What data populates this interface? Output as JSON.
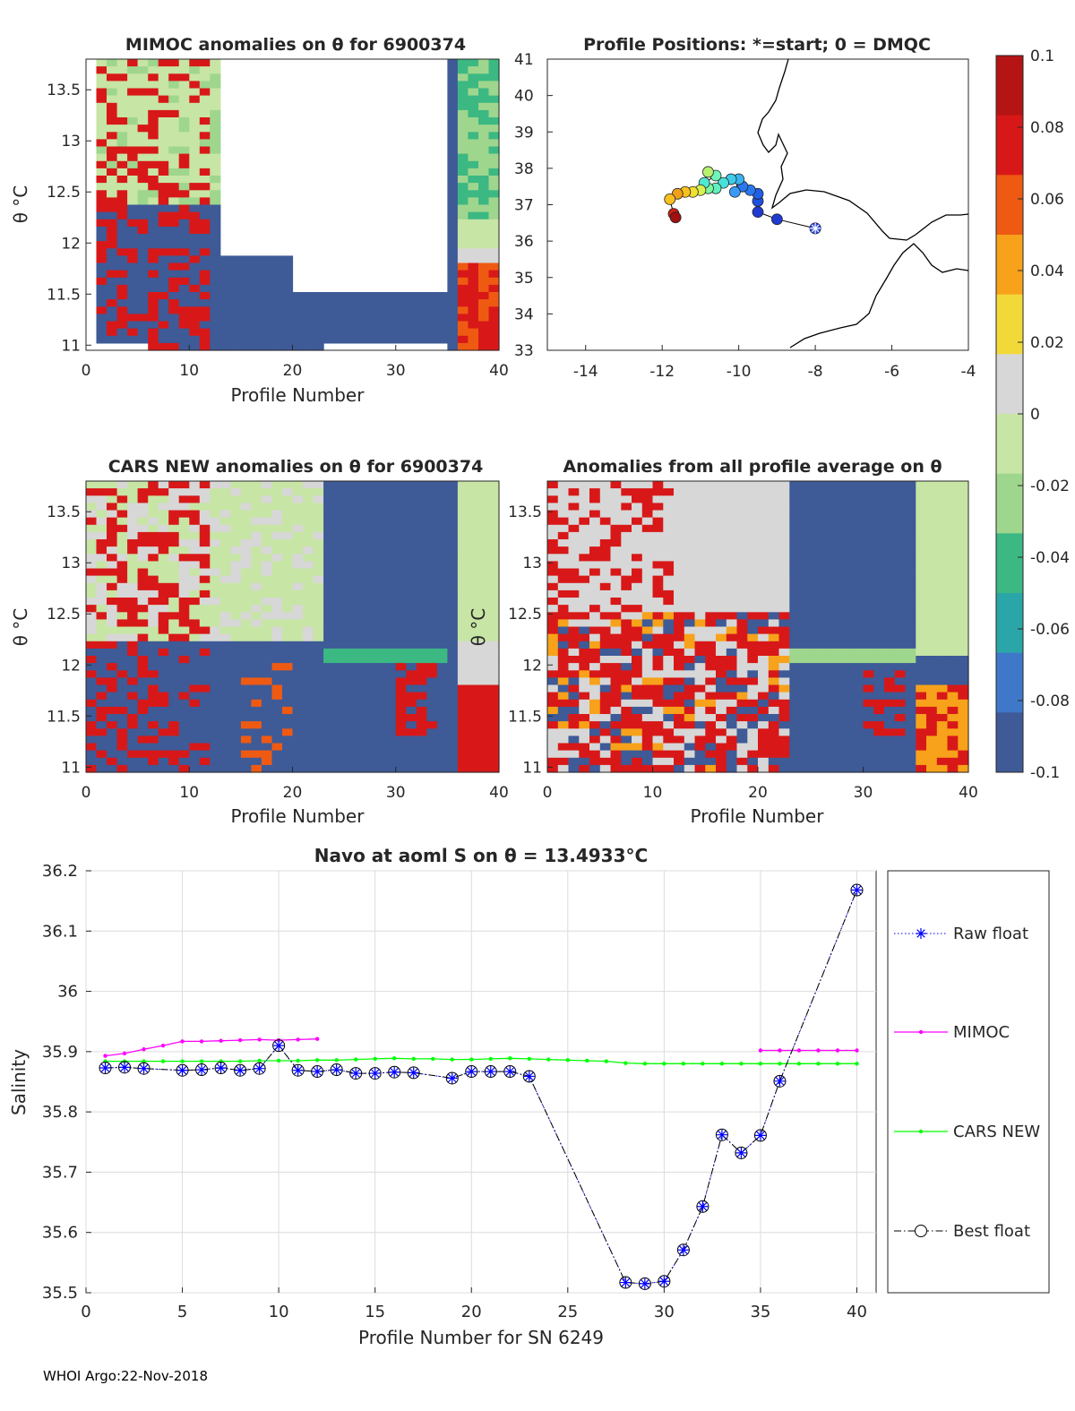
{
  "colors": {
    "cmap": [
      "#3e5a97",
      "#3f78c8",
      "#2ba6a8",
      "#3cb883",
      "#9fd68d",
      "#c7e5a4",
      "#d7d7d7",
      "#f2d93a",
      "#f7a21a",
      "#ef5a13",
      "#d81818",
      "#b51414"
    ],
    "mimoc": "#ff00ff",
    "cars": "#00ff00",
    "raw": "#0000ff",
    "best": "#000000"
  },
  "colorbar": {
    "ticks": [
      "0.1",
      "0.08",
      "0.06",
      "0.04",
      "0.02",
      "0",
      "-0.02",
      "-0.04",
      "-0.06",
      "-0.08",
      "-0.1"
    ]
  },
  "heatmap_titles": {
    "mimoc": "MIMOC anomalies on θ  for 6900374",
    "positions": "Profile Positions: *=start; 0 = DMQC",
    "cars": "CARS NEW anomalies on θ for 6900374",
    "avg": "Anomalies from all profile average on θ"
  },
  "heatmap_axes": {
    "xlabel": "Profile Number",
    "ylabel": "θ °C",
    "yticks": [
      "13.5",
      "13",
      "12.5",
      "12",
      "11.5",
      "11"
    ],
    "xticks": [
      "0",
      "10",
      "20",
      "30",
      "40"
    ]
  },
  "map_axes": {
    "xticks": [
      "-14",
      "-12",
      "-10",
      "-8",
      "-6",
      "-4"
    ],
    "yticks": [
      "41",
      "40",
      "39",
      "38",
      "37",
      "36",
      "35",
      "34",
      "33"
    ]
  },
  "chart_data": [
    {
      "type": "heatmap",
      "title": "MIMOC anomalies on θ  for 6900374",
      "xlabel": "Profile Number",
      "ylabel": "θ °C",
      "xlim": [
        0,
        40
      ],
      "ylim": [
        10.95,
        13.8
      ],
      "clim": [
        -0.1,
        0.1
      ]
    },
    {
      "type": "scatter",
      "title": "Profile Positions: *=start; 0 = DMQC",
      "xlim": [
        -15,
        -4
      ],
      "ylim": [
        33,
        41
      ],
      "points": [
        {
          "lon": -8.0,
          "lat": 36.35,
          "marker": "*"
        },
        {
          "lon": -9.0,
          "lat": 36.6
        },
        {
          "lon": -9.5,
          "lat": 36.8
        },
        {
          "lon": -9.5,
          "lat": 37.1
        },
        {
          "lon": -9.5,
          "lat": 37.3
        },
        {
          "lon": -9.7,
          "lat": 37.4
        },
        {
          "lon": -9.9,
          "lat": 37.5
        },
        {
          "lon": -10.1,
          "lat": 37.35
        },
        {
          "lon": -10.0,
          "lat": 37.7
        },
        {
          "lon": -10.2,
          "lat": 37.7
        },
        {
          "lon": -10.4,
          "lat": 37.6
        },
        {
          "lon": -10.6,
          "lat": 37.45
        },
        {
          "lon": -10.8,
          "lat": 37.45
        },
        {
          "lon": -10.9,
          "lat": 37.6
        },
        {
          "lon": -10.6,
          "lat": 37.8
        },
        {
          "lon": -10.8,
          "lat": 37.9
        },
        {
          "lon": -11.0,
          "lat": 37.4
        },
        {
          "lon": -11.2,
          "lat": 37.35
        },
        {
          "lon": -11.4,
          "lat": 37.35
        },
        {
          "lon": -11.6,
          "lat": 37.3
        },
        {
          "lon": -11.8,
          "lat": 37.15
        },
        {
          "lon": -11.7,
          "lat": 36.75
        },
        {
          "lon": -11.65,
          "lat": 36.65
        }
      ]
    },
    {
      "type": "heatmap",
      "title": "CARS NEW anomalies on θ for 6900374",
      "xlabel": "Profile Number",
      "ylabel": "θ °C",
      "xlim": [
        0,
        40
      ],
      "ylim": [
        10.95,
        13.8
      ],
      "clim": [
        -0.1,
        0.1
      ]
    },
    {
      "type": "heatmap",
      "title": "Anomalies from all profile average on θ",
      "xlabel": "Profile Number",
      "ylabel": "θ °C",
      "xlim": [
        0,
        40
      ],
      "ylim": [
        10.95,
        13.8
      ],
      "clim": [
        -0.1,
        0.1
      ]
    },
    {
      "type": "line",
      "title": "Navo at aoml S on θ = 13.4933°C",
      "xlabel": "Profile Number for SN 6249",
      "ylabel": "Salinity",
      "xlim": [
        0,
        41
      ],
      "ylim": [
        35.5,
        36.2
      ],
      "xticks": [
        "0",
        "5",
        "10",
        "15",
        "20",
        "25",
        "30",
        "35",
        "40"
      ],
      "yticks": [
        "36.2",
        "36.1",
        "36",
        "35.9",
        "35.8",
        "35.7",
        "35.6",
        "35.5"
      ],
      "series": [
        {
          "name": "Raw float",
          "style": "dotted",
          "x": [
            1,
            2,
            3,
            5,
            6,
            7,
            8,
            9,
            10,
            11,
            12,
            13,
            14,
            15,
            16,
            17,
            19,
            20,
            21,
            22,
            23,
            28,
            29,
            30,
            31,
            32,
            33,
            34,
            35,
            36,
            40
          ],
          "y": [
            35.873,
            35.874,
            35.872,
            35.869,
            35.87,
            35.873,
            35.869,
            35.872,
            35.91,
            35.869,
            35.867,
            35.87,
            35.864,
            35.864,
            35.866,
            35.865,
            35.856,
            35.867,
            35.867,
            35.867,
            35.859,
            35.517,
            35.515,
            35.519,
            35.571,
            35.643,
            35.762,
            35.732,
            35.761,
            35.851,
            36.168
          ]
        },
        {
          "name": "MIMOC",
          "style": "solid",
          "x": [
            1,
            2,
            3,
            4,
            5,
            6,
            7,
            8,
            9,
            10,
            11,
            12,
            35,
            36,
            37,
            38,
            39,
            40
          ],
          "y": [
            35.893,
            35.897,
            35.904,
            35.91,
            35.917,
            35.917,
            35.918,
            35.919,
            35.92,
            35.919,
            35.92,
            35.921,
            35.902,
            35.902,
            35.902,
            35.902,
            35.902,
            35.902
          ]
        },
        {
          "name": "CARS NEW",
          "style": "solid",
          "x": [
            1,
            2,
            3,
            4,
            5,
            6,
            7,
            8,
            9,
            10,
            11,
            12,
            13,
            14,
            15,
            16,
            17,
            18,
            19,
            20,
            21,
            22,
            23,
            24,
            25,
            26,
            27,
            28,
            29,
            30,
            31,
            32,
            33,
            34,
            35,
            36,
            37,
            38,
            39,
            40
          ],
          "y": [
            35.884,
            35.884,
            35.884,
            35.884,
            35.884,
            35.884,
            35.884,
            35.884,
            35.885,
            35.885,
            35.885,
            35.886,
            35.886,
            35.887,
            35.888,
            35.889,
            35.888,
            35.888,
            35.887,
            35.887,
            35.888,
            35.889,
            35.888,
            35.887,
            35.886,
            35.885,
            35.884,
            35.881,
            35.88,
            35.88,
            35.88,
            35.88,
            35.88,
            35.88,
            35.88,
            35.88,
            35.88,
            35.88,
            35.88,
            35.88
          ]
        },
        {
          "name": "Best float",
          "style": "dashdot",
          "x": [
            1,
            2,
            3,
            5,
            6,
            7,
            8,
            9,
            10,
            11,
            12,
            13,
            14,
            15,
            16,
            17,
            19,
            20,
            21,
            22,
            23,
            28,
            29,
            30,
            31,
            32,
            33,
            34,
            35,
            36,
            40
          ],
          "y": [
            35.873,
            35.874,
            35.872,
            35.869,
            35.87,
            35.873,
            35.869,
            35.872,
            35.91,
            35.869,
            35.867,
            35.87,
            35.864,
            35.864,
            35.866,
            35.865,
            35.856,
            35.867,
            35.867,
            35.867,
            35.859,
            35.517,
            35.515,
            35.519,
            35.571,
            35.643,
            35.762,
            35.732,
            35.761,
            35.851,
            36.168
          ]
        }
      ]
    }
  ],
  "footer": "WHOI Argo:22-Nov-2018"
}
